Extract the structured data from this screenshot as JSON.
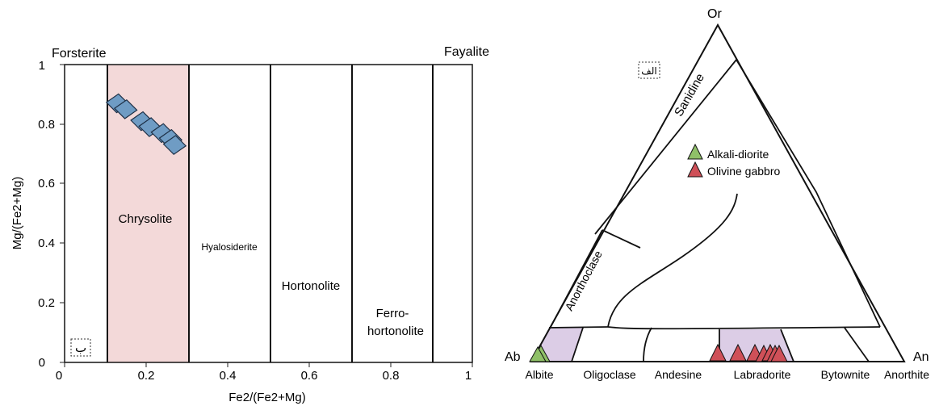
{
  "colors": {
    "diamond_fill": "#6f9cc4",
    "chrysolite_band": "#f3d9d9",
    "feldspar_field": "#dccde6",
    "green_marker": "#8fc068",
    "red_marker": "#cf5058"
  },
  "olivine_plot": {
    "panel_label": "ب",
    "x_axis_label": "Fe2/(Fe2+Mg)",
    "y_axis_label": "Mg/(Fe2+Mg)",
    "corner_left": "Forsterite",
    "corner_right": "Fayalite",
    "x_ticks": [
      "0",
      "0.2",
      "0.4",
      "0.6",
      "0.8",
      "1"
    ],
    "y_ticks": [
      "0",
      "0.2",
      "0.4",
      "0.6",
      "0.8",
      "1"
    ],
    "fields": [
      "Chrysolite",
      "Hyalosiderite",
      "Hortonolite",
      "Ferro-",
      "hortonolite"
    ]
  },
  "chart_data": {
    "type": "scatter",
    "xlabel": "Fe2/(Fe2+Mg)",
    "ylabel": "Mg/(Fe2+Mg)",
    "xlim": [
      0,
      1
    ],
    "ylim": [
      0,
      1
    ],
    "field_boundaries_x": [
      0.1,
      0.3,
      0.5,
      0.7,
      0.9
    ],
    "points": [
      {
        "x": 0.13,
        "y": 0.87
      },
      {
        "x": 0.15,
        "y": 0.85
      },
      {
        "x": 0.19,
        "y": 0.81
      },
      {
        "x": 0.21,
        "y": 0.79
      },
      {
        "x": 0.24,
        "y": 0.77
      },
      {
        "x": 0.26,
        "y": 0.75
      },
      {
        "x": 0.27,
        "y": 0.73
      }
    ]
  },
  "feldspar_ternary": {
    "panel_label": "الف",
    "apex_top": "Or",
    "apex_left": "Ab",
    "apex_right": "An",
    "fields": [
      "Sanidine",
      "Anorthoclase"
    ],
    "base_labels": [
      "Albite",
      "Oligoclase",
      "Andesine",
      "Labradorite",
      "Bytownite",
      "Anorthite"
    ],
    "legend": [
      {
        "label": "Alkali-diorite",
        "color": "#8fc068"
      },
      {
        "label": "Olivine gabbro",
        "color": "#cf5058"
      }
    ]
  }
}
